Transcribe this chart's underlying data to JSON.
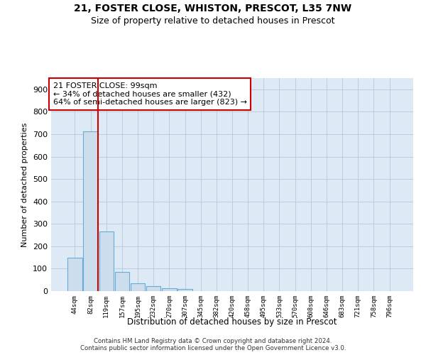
{
  "title": "21, FOSTER CLOSE, WHISTON, PRESCOT, L35 7NW",
  "subtitle": "Size of property relative to detached houses in Prescot",
  "xlabel": "Distribution of detached houses by size in Prescot",
  "ylabel": "Number of detached properties",
  "bar_categories": [
    "44sqm",
    "82sqm",
    "119sqm",
    "157sqm",
    "195sqm",
    "232sqm",
    "270sqm",
    "307sqm",
    "345sqm",
    "382sqm",
    "420sqm",
    "458sqm",
    "495sqm",
    "533sqm",
    "570sqm",
    "608sqm",
    "646sqm",
    "683sqm",
    "721sqm",
    "758sqm",
    "796sqm"
  ],
  "bar_values": [
    148,
    712,
    265,
    85,
    35,
    22,
    13,
    10,
    0,
    0,
    0,
    0,
    0,
    0,
    0,
    0,
    0,
    0,
    0,
    0,
    0
  ],
  "bar_color": "#ccdded",
  "bar_edge_color": "#6aaad4",
  "vline_color": "#cc0000",
  "annotation_text": "21 FOSTER CLOSE: 99sqm\n← 34% of detached houses are smaller (432)\n64% of semi-detached houses are larger (823) →",
  "annotation_box_color": "#ffffff",
  "annotation_box_edge_color": "#cc0000",
  "ylim": [
    0,
    950
  ],
  "yticks": [
    0,
    100,
    200,
    300,
    400,
    500,
    600,
    700,
    800,
    900
  ],
  "grid_color": "#b8c8d8",
  "background_color": "#ddeaf5",
  "footer_line1": "Contains HM Land Registry data © Crown copyright and database right 2024.",
  "footer_line2": "Contains public sector information licensed under the Open Government Licence v3.0.",
  "title_fontsize": 10,
  "subtitle_fontsize": 9
}
